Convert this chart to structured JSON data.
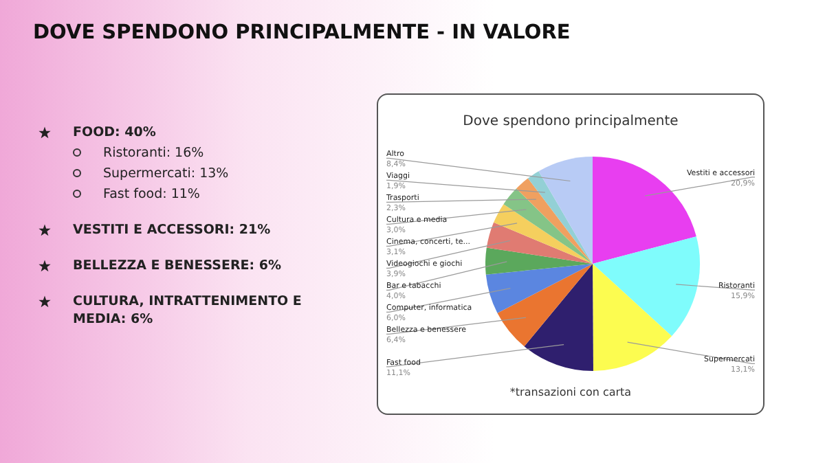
{
  "chart_data": {
    "type": "pie",
    "title": "DOVE SPENDONO PRINCIPALMENTE - IN VALORE",
    "subtitle": "Dove spendono principalmente",
    "categories": [
      "Vestiti e accessori",
      "Ristoranti",
      "Supermercati",
      "Fast food",
      "Bellezza e benessere",
      "Computer, informatica",
      "Bar e tabacchi",
      "Videogiochi e giochi",
      "Cinema, concerti, te...",
      "Cultura e media",
      "Trasporti",
      "Viaggi",
      "Altro"
    ],
    "values": [
      20.9,
      15.9,
      13.1,
      11.1,
      6.4,
      6.0,
      4.0,
      3.9,
      3.1,
      3.0,
      2.3,
      1.9,
      8.4
    ],
    "value_labels": [
      "20,9%",
      "15,9%",
      "13,1%",
      "11,1%",
      "6,4%",
      "6,0%",
      "4,0%",
      "3,9%",
      "3,1%",
      "3,0%",
      "2,3%",
      "1,9%",
      "8,4%"
    ],
    "colors": [
      "#e83ef0",
      "#7ffcfc",
      "#fcfc50",
      "#2f1f6e",
      "#ea7530",
      "#5b86e0",
      "#5ba85c",
      "#e07b72",
      "#f5cf5e",
      "#85c487",
      "#f0a060",
      "#93d0d5",
      "#b8cbf5"
    ],
    "annotations": [
      "FOOD: 40%",
      "Ristoranti: 16%",
      "Supermercati: 13%",
      "Fast food: 11%",
      "VESTITI E ACCESSORI: 21%",
      "BELLEZZA E BENESSERE: 6%",
      "CULTURA, INTRATTENIMENTO E MEDIA: 6%",
      "*transazioni con carta"
    ],
    "legend": false
  }
}
